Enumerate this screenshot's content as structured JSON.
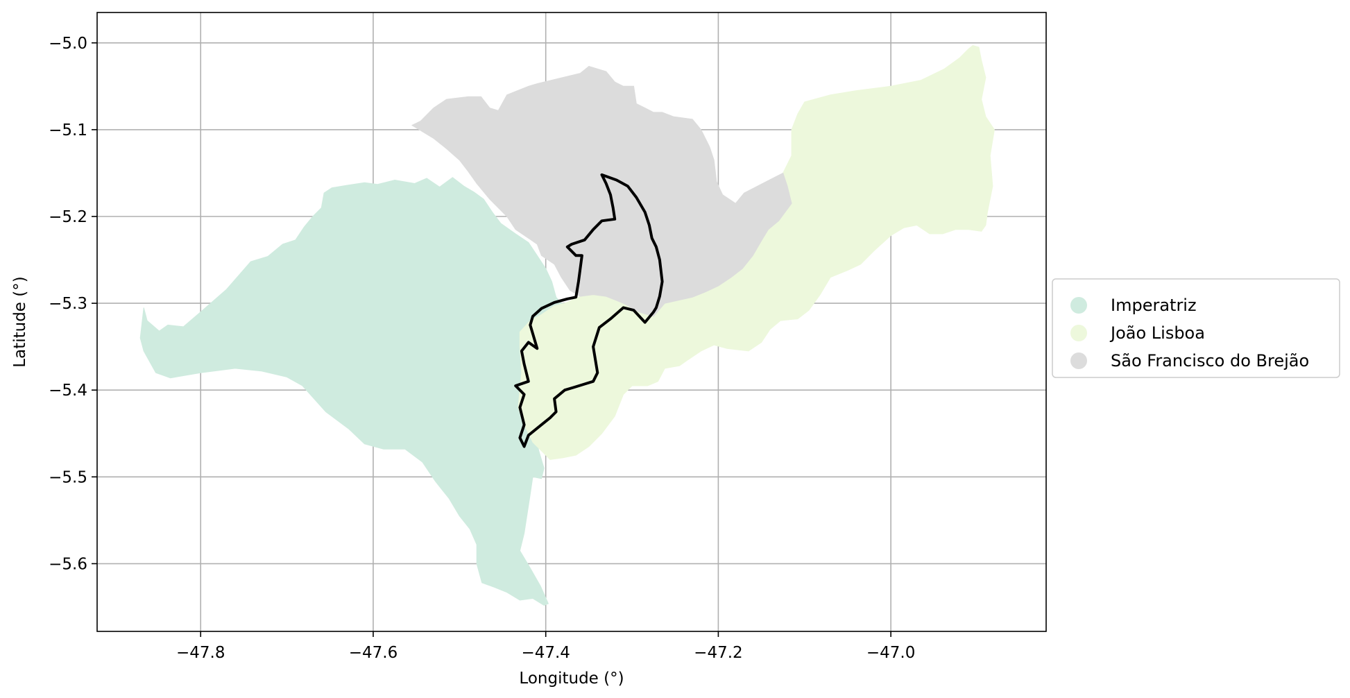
{
  "chart_data": {
    "type": "map",
    "xlabel": "Longitude (°)",
    "ylabel": "Latitude (°)",
    "xlim": [
      -47.92,
      -46.82
    ],
    "ylim": [
      -5.678,
      -4.965
    ],
    "grid": true,
    "legend_placement": "center-right outside",
    "xticks": [
      {
        "value": -47.8,
        "label": "−47.8"
      },
      {
        "value": -47.6,
        "label": "−47.6"
      },
      {
        "value": -47.4,
        "label": "−47.4"
      },
      {
        "value": -47.2,
        "label": "−47.2"
      },
      {
        "value": -47.0,
        "label": "−47.0"
      }
    ],
    "yticks": [
      {
        "value": -5.0,
        "label": "−5.0"
      },
      {
        "value": -5.1,
        "label": "−5.1"
      },
      {
        "value": -5.2,
        "label": "−5.2"
      },
      {
        "value": -5.3,
        "label": "−5.3"
      },
      {
        "value": -5.4,
        "label": "−5.4"
      },
      {
        "value": -5.5,
        "label": "−5.5"
      },
      {
        "value": -5.6,
        "label": "−5.6"
      }
    ],
    "regions": [
      {
        "name": "Imperatriz",
        "color": "#cfebdf",
        "coords": [
          [
            -47.866,
            -5.305
          ],
          [
            -47.862,
            -5.32
          ],
          [
            -47.848,
            -5.332
          ],
          [
            -47.838,
            -5.325
          ],
          [
            -47.82,
            -5.327
          ],
          [
            -47.8,
            -5.31
          ],
          [
            -47.77,
            -5.284
          ],
          [
            -47.742,
            -5.252
          ],
          [
            -47.722,
            -5.246
          ],
          [
            -47.705,
            -5.232
          ],
          [
            -47.69,
            -5.227
          ],
          [
            -47.68,
            -5.212
          ],
          [
            -47.67,
            -5.2
          ],
          [
            -47.66,
            -5.19
          ],
          [
            -47.657,
            -5.173
          ],
          [
            -47.648,
            -5.167
          ],
          [
            -47.63,
            -5.164
          ],
          [
            -47.61,
            -5.161
          ],
          [
            -47.595,
            -5.163
          ],
          [
            -47.575,
            -5.158
          ],
          [
            -47.552,
            -5.162
          ],
          [
            -47.538,
            -5.156
          ],
          [
            -47.523,
            -5.166
          ],
          [
            -47.508,
            -5.155
          ],
          [
            -47.495,
            -5.165
          ],
          [
            -47.483,
            -5.172
          ],
          [
            -47.472,
            -5.18
          ],
          [
            -47.462,
            -5.195
          ],
          [
            -47.452,
            -5.208
          ],
          [
            -47.435,
            -5.22
          ],
          [
            -47.42,
            -5.23
          ],
          [
            -47.41,
            -5.245
          ],
          [
            -47.4,
            -5.26
          ],
          [
            -47.393,
            -5.275
          ],
          [
            -47.388,
            -5.293
          ],
          [
            -47.382,
            -5.3
          ],
          [
            -47.38,
            -5.3
          ],
          [
            -47.405,
            -5.335
          ],
          [
            -47.408,
            -5.33
          ],
          [
            -47.418,
            -5.362
          ],
          [
            -47.418,
            -5.395
          ],
          [
            -47.416,
            -5.42
          ],
          [
            -47.412,
            -5.45
          ],
          [
            -47.408,
            -5.47
          ],
          [
            -47.402,
            -5.49
          ],
          [
            -47.405,
            -5.502
          ],
          [
            -47.415,
            -5.5
          ],
          [
            -47.418,
            -5.52
          ],
          [
            -47.425,
            -5.565
          ],
          [
            -47.43,
            -5.585
          ],
          [
            -47.418,
            -5.605
          ],
          [
            -47.406,
            -5.626
          ],
          [
            -47.397,
            -5.646
          ],
          [
            -47.402,
            -5.648
          ],
          [
            -47.415,
            -5.64
          ],
          [
            -47.43,
            -5.642
          ],
          [
            -47.445,
            -5.633
          ],
          [
            -47.46,
            -5.627
          ],
          [
            -47.474,
            -5.622
          ],
          [
            -47.48,
            -5.6
          ],
          [
            -47.48,
            -5.578
          ],
          [
            -47.488,
            -5.56
          ],
          [
            -47.5,
            -5.545
          ],
          [
            -47.512,
            -5.525
          ],
          [
            -47.528,
            -5.505
          ],
          [
            -47.543,
            -5.483
          ],
          [
            -47.563,
            -5.468
          ],
          [
            -47.588,
            -5.468
          ],
          [
            -47.61,
            -5.462
          ],
          [
            -47.628,
            -5.445
          ],
          [
            -47.655,
            -5.425
          ],
          [
            -47.682,
            -5.395
          ],
          [
            -47.7,
            -5.385
          ],
          [
            -47.73,
            -5.378
          ],
          [
            -47.76,
            -5.375
          ],
          [
            -47.8,
            -5.38
          ],
          [
            -47.835,
            -5.386
          ],
          [
            -47.852,
            -5.38
          ],
          [
            -47.866,
            -5.355
          ],
          [
            -47.87,
            -5.34
          ]
        ]
      },
      {
        "name": "João Lisboa",
        "color": "#edf8dc",
        "coords": [
          [
            -47.43,
            -5.333
          ],
          [
            -47.418,
            -5.32
          ],
          [
            -47.405,
            -5.313
          ],
          [
            -47.39,
            -5.303
          ],
          [
            -47.378,
            -5.3
          ],
          [
            -47.36,
            -5.292
          ],
          [
            -47.345,
            -5.29
          ],
          [
            -47.33,
            -5.292
          ],
          [
            -47.31,
            -5.3
          ],
          [
            -47.292,
            -5.31
          ],
          [
            -47.275,
            -5.315
          ],
          [
            -47.262,
            -5.3
          ],
          [
            -47.248,
            -5.29
          ],
          [
            -47.238,
            -5.28
          ],
          [
            -47.228,
            -5.26
          ],
          [
            -47.21,
            -5.25
          ],
          [
            -47.195,
            -5.235
          ],
          [
            -47.185,
            -5.2
          ],
          [
            -47.17,
            -5.178
          ],
          [
            -47.135,
            -5.158
          ],
          [
            -47.125,
            -5.15
          ],
          [
            -47.115,
            -5.13
          ],
          [
            -47.115,
            -5.1
          ],
          [
            -47.108,
            -5.082
          ],
          [
            -47.1,
            -5.068
          ],
          [
            -47.07,
            -5.06
          ],
          [
            -47.04,
            -5.055
          ],
          [
            -47.0,
            -5.05
          ],
          [
            -46.965,
            -5.043
          ],
          [
            -46.938,
            -5.03
          ],
          [
            -46.92,
            -5.017
          ],
          [
            -46.91,
            -5.007
          ],
          [
            -46.905,
            -5.003
          ],
          [
            -46.898,
            -5.005
          ],
          [
            -46.895,
            -5.02
          ],
          [
            -46.89,
            -5.04
          ],
          [
            -46.895,
            -5.065
          ],
          [
            -46.89,
            -5.085
          ],
          [
            -46.88,
            -5.1
          ],
          [
            -46.885,
            -5.13
          ],
          [
            -46.882,
            -5.165
          ],
          [
            -46.888,
            -5.195
          ],
          [
            -46.89,
            -5.21
          ],
          [
            -46.895,
            -5.217
          ],
          [
            -46.91,
            -5.215
          ],
          [
            -46.925,
            -5.215
          ],
          [
            -46.94,
            -5.22
          ],
          [
            -46.955,
            -5.22
          ],
          [
            -46.97,
            -5.21
          ],
          [
            -46.985,
            -5.213
          ],
          [
            -47.0,
            -5.222
          ],
          [
            -47.02,
            -5.24
          ],
          [
            -47.035,
            -5.255
          ],
          [
            -47.05,
            -5.262
          ],
          [
            -47.07,
            -5.27
          ],
          [
            -47.082,
            -5.29
          ],
          [
            -47.095,
            -5.308
          ],
          [
            -47.108,
            -5.318
          ],
          [
            -47.128,
            -5.32
          ],
          [
            -47.14,
            -5.33
          ],
          [
            -47.15,
            -5.345
          ],
          [
            -47.165,
            -5.355
          ],
          [
            -47.19,
            -5.352
          ],
          [
            -47.205,
            -5.348
          ],
          [
            -47.22,
            -5.355
          ],
          [
            -47.235,
            -5.365
          ],
          [
            -47.245,
            -5.372
          ],
          [
            -47.262,
            -5.375
          ],
          [
            -47.27,
            -5.39
          ],
          [
            -47.282,
            -5.395
          ],
          [
            -47.3,
            -5.395
          ],
          [
            -47.31,
            -5.405
          ],
          [
            -47.32,
            -5.43
          ],
          [
            -47.335,
            -5.45
          ],
          [
            -47.35,
            -5.465
          ],
          [
            -47.365,
            -5.475
          ],
          [
            -47.38,
            -5.478
          ],
          [
            -47.395,
            -5.48
          ],
          [
            -47.405,
            -5.47
          ],
          [
            -47.415,
            -5.46
          ],
          [
            -47.425,
            -5.44
          ],
          [
            -47.432,
            -5.42
          ],
          [
            -47.428,
            -5.38
          ],
          [
            -47.43,
            -5.35
          ]
        ]
      },
      {
        "name": "São Francisco do Brejão",
        "color": "#dcdcdc",
        "coords": [
          [
            -47.555,
            -5.095
          ],
          [
            -47.545,
            -5.09
          ],
          [
            -47.53,
            -5.075
          ],
          [
            -47.515,
            -5.065
          ],
          [
            -47.49,
            -5.062
          ],
          [
            -47.475,
            -5.062
          ],
          [
            -47.465,
            -5.075
          ],
          [
            -47.455,
            -5.078
          ],
          [
            -47.445,
            -5.06
          ],
          [
            -47.42,
            -5.05
          ],
          [
            -47.41,
            -5.047
          ],
          [
            -47.36,
            -5.035
          ],
          [
            -47.35,
            -5.027
          ],
          [
            -47.33,
            -5.033
          ],
          [
            -47.32,
            -5.045
          ],
          [
            -47.31,
            -5.05
          ],
          [
            -47.298,
            -5.05
          ],
          [
            -47.295,
            -5.07
          ],
          [
            -47.285,
            -5.075
          ],
          [
            -47.275,
            -5.08
          ],
          [
            -47.265,
            -5.08
          ],
          [
            -47.252,
            -5.085
          ],
          [
            -47.23,
            -5.088
          ],
          [
            -47.22,
            -5.1
          ],
          [
            -47.21,
            -5.12
          ],
          [
            -47.205,
            -5.135
          ],
          [
            -47.202,
            -5.16
          ],
          [
            -47.195,
            -5.175
          ],
          [
            -47.18,
            -5.185
          ],
          [
            -47.17,
            -5.173
          ],
          [
            -47.135,
            -5.155
          ],
          [
            -47.125,
            -5.15
          ],
          [
            -47.12,
            -5.165
          ],
          [
            -47.115,
            -5.185
          ],
          [
            -47.13,
            -5.205
          ],
          [
            -47.142,
            -5.215
          ],
          [
            -47.15,
            -5.228
          ],
          [
            -47.16,
            -5.245
          ],
          [
            -47.172,
            -5.26
          ],
          [
            -47.185,
            -5.27
          ],
          [
            -47.2,
            -5.28
          ],
          [
            -47.215,
            -5.287
          ],
          [
            -47.23,
            -5.293
          ],
          [
            -47.248,
            -5.297
          ],
          [
            -47.262,
            -5.3
          ],
          [
            -47.275,
            -5.315
          ],
          [
            -47.292,
            -5.31
          ],
          [
            -47.31,
            -5.3
          ],
          [
            -47.33,
            -5.292
          ],
          [
            -47.345,
            -5.29
          ],
          [
            -47.36,
            -5.292
          ],
          [
            -47.372,
            -5.285
          ],
          [
            -47.382,
            -5.27
          ],
          [
            -47.39,
            -5.255
          ],
          [
            -47.405,
            -5.245
          ],
          [
            -47.41,
            -5.232
          ],
          [
            -47.42,
            -5.225
          ],
          [
            -47.435,
            -5.215
          ],
          [
            -47.445,
            -5.2
          ],
          [
            -47.455,
            -5.19
          ],
          [
            -47.465,
            -5.18
          ],
          [
            -47.48,
            -5.162
          ],
          [
            -47.49,
            -5.148
          ],
          [
            -47.5,
            -5.135
          ],
          [
            -47.515,
            -5.122
          ],
          [
            -47.53,
            -5.11
          ]
        ]
      }
    ],
    "outline": {
      "color": "#000000",
      "coords": [
        [
          -47.335,
          -5.152
        ],
        [
          -47.318,
          -5.158
        ],
        [
          -47.305,
          -5.165
        ],
        [
          -47.295,
          -5.178
        ],
        [
          -47.285,
          -5.195
        ],
        [
          -47.28,
          -5.21
        ],
        [
          -47.277,
          -5.225
        ],
        [
          -47.272,
          -5.235
        ],
        [
          -47.268,
          -5.25
        ],
        [
          -47.265,
          -5.275
        ],
        [
          -47.268,
          -5.292
        ],
        [
          -47.272,
          -5.305
        ],
        [
          -47.275,
          -5.31
        ],
        [
          -47.285,
          -5.322
        ],
        [
          -47.298,
          -5.308
        ],
        [
          -47.31,
          -5.305
        ],
        [
          -47.325,
          -5.318
        ],
        [
          -47.338,
          -5.328
        ],
        [
          -47.345,
          -5.35
        ],
        [
          -47.34,
          -5.38
        ],
        [
          -47.345,
          -5.39
        ],
        [
          -47.355,
          -5.393
        ],
        [
          -47.368,
          -5.397
        ],
        [
          -47.378,
          -5.4
        ],
        [
          -47.39,
          -5.41
        ],
        [
          -47.388,
          -5.425
        ],
        [
          -47.395,
          -5.432
        ],
        [
          -47.405,
          -5.44
        ],
        [
          -47.42,
          -5.452
        ],
        [
          -47.425,
          -5.465
        ],
        [
          -47.43,
          -5.455
        ],
        [
          -47.425,
          -5.44
        ],
        [
          -47.43,
          -5.42
        ],
        [
          -47.425,
          -5.405
        ],
        [
          -47.435,
          -5.395
        ],
        [
          -47.42,
          -5.39
        ],
        [
          -47.425,
          -5.37
        ],
        [
          -47.428,
          -5.355
        ],
        [
          -47.42,
          -5.345
        ],
        [
          -47.41,
          -5.352
        ],
        [
          -47.415,
          -5.335
        ],
        [
          -47.418,
          -5.325
        ],
        [
          -47.415,
          -5.315
        ],
        [
          -47.405,
          -5.306
        ],
        [
          -47.39,
          -5.299
        ],
        [
          -47.375,
          -5.295
        ],
        [
          -47.365,
          -5.293
        ],
        [
          -47.362,
          -5.275
        ],
        [
          -47.36,
          -5.26
        ],
        [
          -47.358,
          -5.245
        ],
        [
          -47.365,
          -5.245
        ],
        [
          -47.375,
          -5.235
        ],
        [
          -47.37,
          -5.232
        ],
        [
          -47.355,
          -5.227
        ],
        [
          -47.345,
          -5.215
        ],
        [
          -47.335,
          -5.205
        ],
        [
          -47.32,
          -5.203
        ],
        [
          -47.322,
          -5.19
        ],
        [
          -47.325,
          -5.175
        ],
        [
          -47.33,
          -5.162
        ]
      ]
    },
    "legend": [
      {
        "label": "Imperatriz",
        "color": "#cfebdf"
      },
      {
        "label": "João Lisboa",
        "color": "#edf8dc"
      },
      {
        "label": "São Francisco do Brejão",
        "color": "#dcdcdc"
      }
    ]
  }
}
